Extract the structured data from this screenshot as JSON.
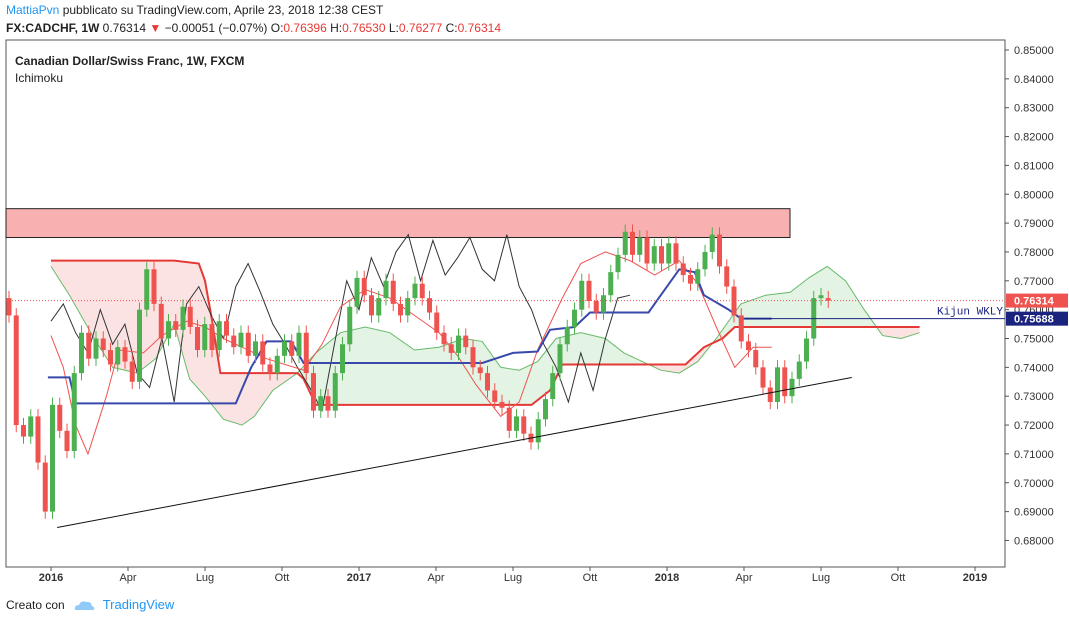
{
  "header": {
    "author": "MattiaPvn",
    "published": "pubblicato su TradingView.com, Aprile 23, 2018 12:38 CEST",
    "symbol": "FX:CADCHF, 1W",
    "price": "0.76314",
    "change": "−0.00051 (−0.07%)",
    "o_label": "O:",
    "o_value": "0.76396",
    "h_label": "H:",
    "h_value": "0.76530",
    "l_label": "L:",
    "l_value": "0.76277",
    "c_label": "C:",
    "c_value": "0.76314"
  },
  "legend": {
    "title": "Canadian Dollar/Swiss Franc, 1W, FXCM",
    "indicator": "Ichimoku"
  },
  "footer": {
    "created_by": "Creato con",
    "brand": "TradingView"
  },
  "colors": {
    "up": "#4caf50",
    "down": "#ef5350",
    "kijun": "#3949ab",
    "tenkan": "#ef5350",
    "span_a": "#66bb6a",
    "span_b": "#e53935",
    "chikou": "#333333",
    "zone": "#f9b0b0"
  },
  "chart_data": {
    "type": "candlestick",
    "title": "Canadian Dollar/Swiss Franc, 1W, FXCM",
    "indicator": "Ichimoku",
    "x_ticks": [
      "2016",
      "Apr",
      "Lug",
      "Ott",
      "2017",
      "Apr",
      "Lug",
      "Ott",
      "2018",
      "Apr",
      "Lug",
      "Ott",
      "2019"
    ],
    "y_ticks": [
      "0.85000",
      "0.84000",
      "0.83000",
      "0.82000",
      "0.81000",
      "0.80000",
      "0.79000",
      "0.78000",
      "0.77000",
      "0.76000",
      "0.75000",
      "0.74000",
      "0.73000",
      "0.72000",
      "0.71000",
      "0.70000",
      "0.69000",
      "0.68000"
    ],
    "ylim": [
      0.675,
      0.852
    ],
    "last_price": 0.76314,
    "kijun_value": 0.75688,
    "kijun_label": "Kijun WKLY",
    "resistance_zone": {
      "low": 0.785,
      "high": 0.795
    },
    "trendline": [
      {
        "t": 2016.02,
        "y": 0.6845
      },
      {
        "t": 2018.6,
        "y": 0.7365
      }
    ],
    "candles": [
      {
        "o": 0.764,
        "c": 0.758
      },
      {
        "o": 0.758,
        "c": 0.72
      },
      {
        "o": 0.72,
        "c": 0.716
      },
      {
        "o": 0.716,
        "c": 0.723
      },
      {
        "o": 0.723,
        "c": 0.707
      },
      {
        "o": 0.707,
        "c": 0.69
      },
      {
        "o": 0.69,
        "c": 0.727
      },
      {
        "o": 0.727,
        "c": 0.718
      },
      {
        "o": 0.718,
        "c": 0.711
      },
      {
        "o": 0.711,
        "c": 0.738
      },
      {
        "o": 0.738,
        "c": 0.752
      },
      {
        "o": 0.752,
        "c": 0.743
      },
      {
        "o": 0.743,
        "c": 0.75
      },
      {
        "o": 0.75,
        "c": 0.746
      },
      {
        "o": 0.746,
        "c": 0.741
      },
      {
        "o": 0.741,
        "c": 0.747
      },
      {
        "o": 0.747,
        "c": 0.742
      },
      {
        "o": 0.742,
        "c": 0.735
      },
      {
        "o": 0.735,
        "c": 0.76
      },
      {
        "o": 0.76,
        "c": 0.774
      },
      {
        "o": 0.774,
        "c": 0.762
      },
      {
        "o": 0.762,
        "c": 0.75
      },
      {
        "o": 0.75,
        "c": 0.756
      },
      {
        "o": 0.756,
        "c": 0.753
      },
      {
        "o": 0.753,
        "c": 0.761
      },
      {
        "o": 0.761,
        "c": 0.754
      },
      {
        "o": 0.754,
        "c": 0.746
      },
      {
        "o": 0.746,
        "c": 0.755
      },
      {
        "o": 0.755,
        "c": 0.746
      },
      {
        "o": 0.746,
        "c": 0.756
      },
      {
        "o": 0.756,
        "c": 0.751
      },
      {
        "o": 0.751,
        "c": 0.747
      },
      {
        "o": 0.747,
        "c": 0.752
      },
      {
        "o": 0.752,
        "c": 0.744
      },
      {
        "o": 0.744,
        "c": 0.749
      },
      {
        "o": 0.749,
        "c": 0.741
      },
      {
        "o": 0.741,
        "c": 0.738
      },
      {
        "o": 0.738,
        "c": 0.744
      },
      {
        "o": 0.744,
        "c": 0.749
      },
      {
        "o": 0.749,
        "c": 0.744
      },
      {
        "o": 0.744,
        "c": 0.752
      },
      {
        "o": 0.752,
        "c": 0.738
      },
      {
        "o": 0.738,
        "c": 0.725
      },
      {
        "o": 0.725,
        "c": 0.73
      },
      {
        "o": 0.73,
        "c": 0.725
      },
      {
        "o": 0.725,
        "c": 0.738
      },
      {
        "o": 0.738,
        "c": 0.748
      },
      {
        "o": 0.748,
        "c": 0.761
      },
      {
        "o": 0.761,
        "c": 0.771
      },
      {
        "o": 0.771,
        "c": 0.765
      },
      {
        "o": 0.765,
        "c": 0.758
      },
      {
        "o": 0.758,
        "c": 0.764
      },
      {
        "o": 0.764,
        "c": 0.77
      },
      {
        "o": 0.77,
        "c": 0.762
      },
      {
        "o": 0.762,
        "c": 0.758
      },
      {
        "o": 0.758,
        "c": 0.764
      },
      {
        "o": 0.764,
        "c": 0.769
      },
      {
        "o": 0.769,
        "c": 0.764
      },
      {
        "o": 0.764,
        "c": 0.759
      },
      {
        "o": 0.759,
        "c": 0.752
      },
      {
        "o": 0.752,
        "c": 0.748
      },
      {
        "o": 0.748,
        "c": 0.745
      },
      {
        "o": 0.745,
        "c": 0.751
      },
      {
        "o": 0.751,
        "c": 0.747
      },
      {
        "o": 0.747,
        "c": 0.74
      },
      {
        "o": 0.74,
        "c": 0.738
      },
      {
        "o": 0.738,
        "c": 0.732
      },
      {
        "o": 0.732,
        "c": 0.728
      },
      {
        "o": 0.728,
        "c": 0.726
      },
      {
        "o": 0.726,
        "c": 0.718
      },
      {
        "o": 0.718,
        "c": 0.723
      },
      {
        "o": 0.723,
        "c": 0.717
      },
      {
        "o": 0.717,
        "c": 0.714
      },
      {
        "o": 0.714,
        "c": 0.722
      },
      {
        "o": 0.722,
        "c": 0.729
      },
      {
        "o": 0.729,
        "c": 0.738
      },
      {
        "o": 0.738,
        "c": 0.748
      },
      {
        "o": 0.748,
        "c": 0.754
      },
      {
        "o": 0.754,
        "c": 0.76
      },
      {
        "o": 0.76,
        "c": 0.77
      },
      {
        "o": 0.77,
        "c": 0.763
      },
      {
        "o": 0.763,
        "c": 0.759
      },
      {
        "o": 0.759,
        "c": 0.765
      },
      {
        "o": 0.765,
        "c": 0.773
      },
      {
        "o": 0.773,
        "c": 0.779
      },
      {
        "o": 0.779,
        "c": 0.787
      },
      {
        "o": 0.787,
        "c": 0.779
      },
      {
        "o": 0.779,
        "c": 0.785
      },
      {
        "o": 0.785,
        "c": 0.776
      },
      {
        "o": 0.776,
        "c": 0.782
      },
      {
        "o": 0.782,
        "c": 0.776
      },
      {
        "o": 0.776,
        "c": 0.783
      },
      {
        "o": 0.783,
        "c": 0.776
      },
      {
        "o": 0.776,
        "c": 0.772
      },
      {
        "o": 0.772,
        "c": 0.769
      },
      {
        "o": 0.769,
        "c": 0.774
      },
      {
        "o": 0.774,
        "c": 0.78
      },
      {
        "o": 0.78,
        "c": 0.786
      },
      {
        "o": 0.786,
        "c": 0.775
      },
      {
        "o": 0.775,
        "c": 0.768
      },
      {
        "o": 0.768,
        "c": 0.758
      },
      {
        "o": 0.758,
        "c": 0.749
      },
      {
        "o": 0.749,
        "c": 0.746
      },
      {
        "o": 0.746,
        "c": 0.74
      },
      {
        "o": 0.74,
        "c": 0.733
      },
      {
        "o": 0.733,
        "c": 0.728
      },
      {
        "o": 0.728,
        "c": 0.74
      },
      {
        "o": 0.74,
        "c": 0.73
      },
      {
        "o": 0.73,
        "c": 0.736
      },
      {
        "o": 0.736,
        "c": 0.742
      },
      {
        "o": 0.742,
        "c": 0.75
      },
      {
        "o": 0.75,
        "c": 0.764
      },
      {
        "o": 0.764,
        "c": 0.765
      },
      {
        "o": 0.764,
        "c": 0.7631
      }
    ],
    "kijun": [
      {
        "t": 2015.99,
        "y": 0.7365
      },
      {
        "t": 2016.06,
        "y": 0.7365
      },
      {
        "t": 2016.08,
        "y": 0.7275
      },
      {
        "t": 2016.6,
        "y": 0.7275
      },
      {
        "t": 2016.65,
        "y": 0.74
      },
      {
        "t": 2016.7,
        "y": 0.749
      },
      {
        "t": 2016.78,
        "y": 0.749
      },
      {
        "t": 2016.82,
        "y": 0.7415
      },
      {
        "t": 2017.4,
        "y": 0.7415
      },
      {
        "t": 2017.5,
        "y": 0.745
      },
      {
        "t": 2017.58,
        "y": 0.7455
      },
      {
        "t": 2017.62,
        "y": 0.753
      },
      {
        "t": 2017.7,
        "y": 0.754
      },
      {
        "t": 2017.75,
        "y": 0.759
      },
      {
        "t": 2017.94,
        "y": 0.759
      },
      {
        "t": 2017.98,
        "y": 0.765
      },
      {
        "t": 2018.04,
        "y": 0.774
      },
      {
        "t": 2018.09,
        "y": 0.773
      },
      {
        "t": 2018.12,
        "y": 0.765
      },
      {
        "t": 2018.2,
        "y": 0.76
      },
      {
        "t": 2018.24,
        "y": 0.7569
      },
      {
        "t": 2018.34,
        "y": 0.7569
      }
    ],
    "tenkan": [
      {
        "t": 2016.0,
        "y": 0.751
      },
      {
        "t": 2016.04,
        "y": 0.74
      },
      {
        "t": 2016.08,
        "y": 0.72
      },
      {
        "t": 2016.12,
        "y": 0.71
      },
      {
        "t": 2016.18,
        "y": 0.73
      },
      {
        "t": 2016.22,
        "y": 0.746
      },
      {
        "t": 2016.3,
        "y": 0.745
      },
      {
        "t": 2016.36,
        "y": 0.751
      },
      {
        "t": 2016.44,
        "y": 0.756
      },
      {
        "t": 2016.5,
        "y": 0.754
      },
      {
        "t": 2016.56,
        "y": 0.75
      },
      {
        "t": 2016.62,
        "y": 0.747
      },
      {
        "t": 2016.7,
        "y": 0.743
      },
      {
        "t": 2016.76,
        "y": 0.741
      },
      {
        "t": 2016.82,
        "y": 0.739
      },
      {
        "t": 2016.88,
        "y": 0.748
      },
      {
        "t": 2016.94,
        "y": 0.761
      },
      {
        "t": 2017.02,
        "y": 0.767
      },
      {
        "t": 2017.1,
        "y": 0.764
      },
      {
        "t": 2017.18,
        "y": 0.758
      },
      {
        "t": 2017.26,
        "y": 0.752
      },
      {
        "t": 2017.32,
        "y": 0.744
      },
      {
        "t": 2017.38,
        "y": 0.734
      },
      {
        "t": 2017.46,
        "y": 0.723
      },
      {
        "t": 2017.52,
        "y": 0.728
      },
      {
        "t": 2017.58,
        "y": 0.746
      },
      {
        "t": 2017.66,
        "y": 0.764
      },
      {
        "t": 2017.72,
        "y": 0.776
      },
      {
        "t": 2017.8,
        "y": 0.78
      },
      {
        "t": 2017.88,
        "y": 0.777
      },
      {
        "t": 2017.96,
        "y": 0.772
      },
      {
        "t": 2018.04,
        "y": 0.777
      },
      {
        "t": 2018.1,
        "y": 0.769
      },
      {
        "t": 2018.16,
        "y": 0.754
      },
      {
        "t": 2018.22,
        "y": 0.74
      },
      {
        "t": 2018.28,
        "y": 0.747
      },
      {
        "t": 2018.34,
        "y": 0.747
      }
    ],
    "span_a": [
      {
        "t": 2016.0,
        "y": 0.775
      },
      {
        "t": 2016.06,
        "y": 0.765
      },
      {
        "t": 2016.14,
        "y": 0.75
      },
      {
        "t": 2016.2,
        "y": 0.74
      },
      {
        "t": 2016.28,
        "y": 0.738
      },
      {
        "t": 2016.34,
        "y": 0.743
      },
      {
        "t": 2016.4,
        "y": 0.755
      },
      {
        "t": 2016.45,
        "y": 0.736
      },
      {
        "t": 2016.5,
        "y": 0.73
      },
      {
        "t": 2016.56,
        "y": 0.722
      },
      {
        "t": 2016.62,
        "y": 0.72
      },
      {
        "t": 2016.66,
        "y": 0.723
      },
      {
        "t": 2016.72,
        "y": 0.732
      },
      {
        "t": 2016.8,
        "y": 0.738
      },
      {
        "t": 2016.86,
        "y": 0.745
      },
      {
        "t": 2016.94,
        "y": 0.752
      },
      {
        "t": 2017.02,
        "y": 0.754
      },
      {
        "t": 2017.1,
        "y": 0.752
      },
      {
        "t": 2017.18,
        "y": 0.746
      },
      {
        "t": 2017.26,
        "y": 0.747
      },
      {
        "t": 2017.34,
        "y": 0.75
      },
      {
        "t": 2017.4,
        "y": 0.749
      },
      {
        "t": 2017.46,
        "y": 0.74
      },
      {
        "t": 2017.52,
        "y": 0.739
      },
      {
        "t": 2017.58,
        "y": 0.742
      },
      {
        "t": 2017.64,
        "y": 0.75
      },
      {
        "t": 2017.72,
        "y": 0.752
      },
      {
        "t": 2017.8,
        "y": 0.75
      },
      {
        "t": 2017.86,
        "y": 0.745
      },
      {
        "t": 2017.92,
        "y": 0.742
      },
      {
        "t": 2017.98,
        "y": 0.739
      },
      {
        "t": 2018.04,
        "y": 0.738
      },
      {
        "t": 2018.1,
        "y": 0.742
      },
      {
        "t": 2018.16,
        "y": 0.75
      },
      {
        "t": 2018.24,
        "y": 0.762
      },
      {
        "t": 2018.32,
        "y": 0.765
      },
      {
        "t": 2018.4,
        "y": 0.766
      },
      {
        "t": 2018.46,
        "y": 0.771
      },
      {
        "t": 2018.52,
        "y": 0.775
      },
      {
        "t": 2018.58,
        "y": 0.77
      },
      {
        "t": 2018.64,
        "y": 0.76
      },
      {
        "t": 2018.7,
        "y": 0.751
      },
      {
        "t": 2018.76,
        "y": 0.75
      },
      {
        "t": 2018.82,
        "y": 0.752
      }
    ],
    "span_b": [
      {
        "t": 2016.0,
        "y": 0.777
      },
      {
        "t": 2016.4,
        "y": 0.777
      },
      {
        "t": 2016.48,
        "y": 0.776
      },
      {
        "t": 2016.5,
        "y": 0.77
      },
      {
        "t": 2016.52,
        "y": 0.758
      },
      {
        "t": 2016.55,
        "y": 0.738
      },
      {
        "t": 2016.8,
        "y": 0.738
      },
      {
        "t": 2016.82,
        "y": 0.736
      },
      {
        "t": 2016.86,
        "y": 0.727
      },
      {
        "t": 2017.56,
        "y": 0.727
      },
      {
        "t": 2017.62,
        "y": 0.732
      },
      {
        "t": 2017.66,
        "y": 0.741
      },
      {
        "t": 2018.06,
        "y": 0.741
      },
      {
        "t": 2018.12,
        "y": 0.747
      },
      {
        "t": 2018.18,
        "y": 0.75
      },
      {
        "t": 2018.22,
        "y": 0.754
      },
      {
        "t": 2018.82,
        "y": 0.754
      }
    ],
    "chikou": [
      {
        "t": 2016.0,
        "y": 0.756
      },
      {
        "t": 2016.04,
        "y": 0.762
      },
      {
        "t": 2016.08,
        "y": 0.752
      },
      {
        "t": 2016.12,
        "y": 0.745
      },
      {
        "t": 2016.16,
        "y": 0.76
      },
      {
        "t": 2016.2,
        "y": 0.748
      },
      {
        "t": 2016.24,
        "y": 0.755
      },
      {
        "t": 2016.28,
        "y": 0.738
      },
      {
        "t": 2016.32,
        "y": 0.733
      },
      {
        "t": 2016.36,
        "y": 0.75
      },
      {
        "t": 2016.4,
        "y": 0.728
      },
      {
        "t": 2016.44,
        "y": 0.762
      },
      {
        "t": 2016.48,
        "y": 0.768
      },
      {
        "t": 2016.52,
        "y": 0.758
      },
      {
        "t": 2016.56,
        "y": 0.75
      },
      {
        "t": 2016.6,
        "y": 0.768
      },
      {
        "t": 2016.64,
        "y": 0.776
      },
      {
        "t": 2016.68,
        "y": 0.766
      },
      {
        "t": 2016.72,
        "y": 0.755
      },
      {
        "t": 2016.76,
        "y": 0.748
      },
      {
        "t": 2016.8,
        "y": 0.74
      },
      {
        "t": 2016.84,
        "y": 0.733
      },
      {
        "t": 2016.88,
        "y": 0.725
      },
      {
        "t": 2016.92,
        "y": 0.748
      },
      {
        "t": 2016.96,
        "y": 0.77
      },
      {
        "t": 2017.0,
        "y": 0.76
      },
      {
        "t": 2017.04,
        "y": 0.778
      },
      {
        "t": 2017.08,
        "y": 0.768
      },
      {
        "t": 2017.12,
        "y": 0.78
      },
      {
        "t": 2017.16,
        "y": 0.786
      },
      {
        "t": 2017.2,
        "y": 0.77
      },
      {
        "t": 2017.24,
        "y": 0.784
      },
      {
        "t": 2017.28,
        "y": 0.772
      },
      {
        "t": 2017.32,
        "y": 0.778
      },
      {
        "t": 2017.36,
        "y": 0.785
      },
      {
        "t": 2017.4,
        "y": 0.774
      },
      {
        "t": 2017.44,
        "y": 0.77
      },
      {
        "t": 2017.48,
        "y": 0.786
      },
      {
        "t": 2017.52,
        "y": 0.768
      },
      {
        "t": 2017.56,
        "y": 0.76
      },
      {
        "t": 2017.6,
        "y": 0.748
      },
      {
        "t": 2017.64,
        "y": 0.74
      },
      {
        "t": 2017.68,
        "y": 0.728
      },
      {
        "t": 2017.72,
        "y": 0.745
      },
      {
        "t": 2017.76,
        "y": 0.732
      },
      {
        "t": 2017.8,
        "y": 0.75
      },
      {
        "t": 2017.84,
        "y": 0.764
      },
      {
        "t": 2017.88,
        "y": 0.765
      }
    ]
  }
}
